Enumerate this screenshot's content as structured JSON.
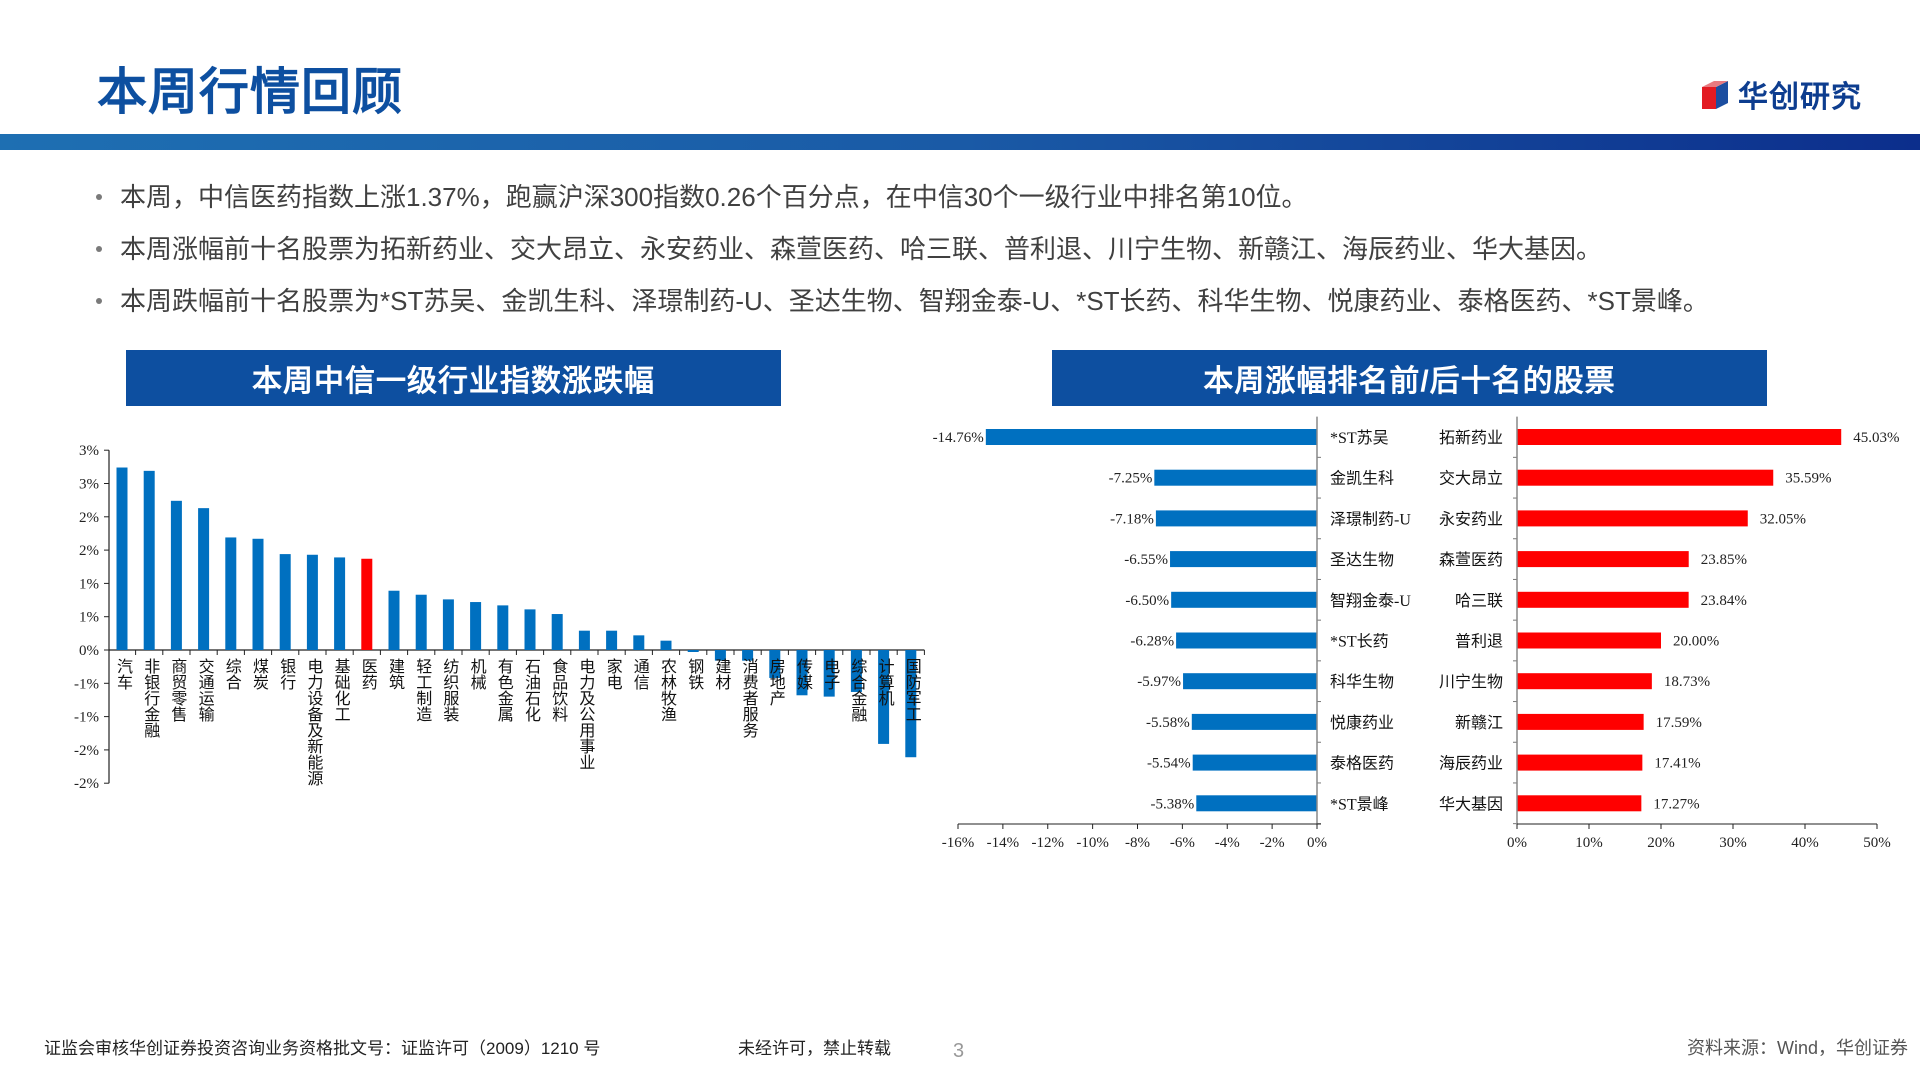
{
  "header": {
    "title": "本周行情回顾",
    "logo_text": "华创研究"
  },
  "bullets": [
    "本周，中信医药指数上涨1.37%，跑赢沪深300指数0.26个百分点，在中信30个一级行业中排名第10位。",
    "本周涨幅前十名股票为拓新药业、交大昂立、永安药业、森萱医药、哈三联、普利退、川宁生物、新赣江、海辰药业、华大基因。",
    "本周跌幅前十名股票为*ST苏吴、金凯生科、泽璟制药-U、圣达生物、智翔金泰-U、*ST长药、科华生物、悦康药业、泰格医药、*ST景峰。"
  ],
  "colors": {
    "brand": "#0d4fa0",
    "bar_blue": "#0070c0",
    "bar_red": "#ff0000"
  },
  "chart_data": [
    {
      "type": "bar",
      "title": "本周中信一级行业指数涨跌幅",
      "categories": [
        "汽车",
        "非银行金融",
        "商贸零售",
        "交通运输",
        "综合",
        "煤炭",
        "银行",
        "电力设备及新能源",
        "基础化工",
        "医药",
        "建筑",
        "轻工制造",
        "纺织服装",
        "机械",
        "有色金属",
        "石油石化",
        "食品饮料",
        "电力及公用事业",
        "家电",
        "通信",
        "农林牧渔",
        "钢铁",
        "建材",
        "消费者服务",
        "房地产",
        "传媒",
        "电子",
        "综合金融",
        "计算机",
        "国防军工"
      ],
      "values": [
        2.74,
        2.69,
        2.24,
        2.13,
        1.69,
        1.67,
        1.44,
        1.43,
        1.39,
        1.37,
        0.89,
        0.83,
        0.76,
        0.72,
        0.67,
        0.61,
        0.54,
        0.29,
        0.29,
        0.22,
        0.14,
        -0.03,
        -0.16,
        -0.16,
        -0.42,
        -0.68,
        -0.7,
        -0.63,
        -1.41,
        -1.61
      ],
      "highlight": "医药",
      "ylim": [
        -2,
        3
      ],
      "ytick_values": [
        3,
        2.5,
        2,
        1.5,
        1,
        0.5,
        0,
        -0.5,
        -1,
        -1.5,
        -2
      ],
      "ytick_labels": [
        "3%",
        "3%",
        "2%",
        "2%",
        "1%",
        "1%",
        "0%",
        "-1%",
        "-1%",
        "-2%",
        "-2%"
      ],
      "grid": false
    },
    {
      "type": "bar",
      "orientation": "horizontal",
      "title": "本周涨幅排名前/后十名的股票",
      "losers": {
        "names": [
          "*ST苏吴",
          "金凯生科",
          "泽璟制药-U",
          "圣达生物",
          "智翔金泰-U",
          "*ST长药",
          "科华生物",
          "悦康药业",
          "泰格医药",
          "*ST景峰"
        ],
        "values": [
          -14.76,
          -7.25,
          -7.18,
          -6.55,
          -6.5,
          -6.28,
          -5.97,
          -5.58,
          -5.54,
          -5.38
        ],
        "labels": [
          "-14.76%",
          "-7.25%",
          "-7.18%",
          "-6.55%",
          "-6.50%",
          "-6.28%",
          "-5.97%",
          "-5.58%",
          "-5.54%",
          "-5.38%"
        ],
        "xlim": [
          -16,
          0
        ],
        "xtick_labels": [
          "-16%",
          "-14%",
          "-12%",
          "-10%",
          "-8%",
          "-6%",
          "-4%",
          "-2%",
          "0%"
        ]
      },
      "gainers": {
        "names": [
          "拓新药业",
          "交大昂立",
          "永安药业",
          "森萱医药",
          "哈三联",
          "普利退",
          "川宁生物",
          "新赣江",
          "海辰药业",
          "华大基因"
        ],
        "values": [
          45.03,
          35.59,
          32.05,
          23.85,
          23.84,
          20.0,
          18.73,
          17.59,
          17.41,
          17.27
        ],
        "labels": [
          "45.03%",
          "35.59%",
          "32.05%",
          "23.85%",
          "23.84%",
          "20.00%",
          "18.73%",
          "17.59%",
          "17.41%",
          "17.27%"
        ],
        "xlim": [
          0,
          50
        ],
        "xtick_labels": [
          "0%",
          "10%",
          "20%",
          "30%",
          "40%",
          "50%"
        ]
      },
      "grid": false
    }
  ],
  "footer": {
    "license": "证监会审核华创证券投资咨询业务资格批文号：证监许可（2009）1210 号",
    "notice": "未经许可，禁止转载",
    "page": "3",
    "source": "资料来源：Wind，华创证券"
  }
}
